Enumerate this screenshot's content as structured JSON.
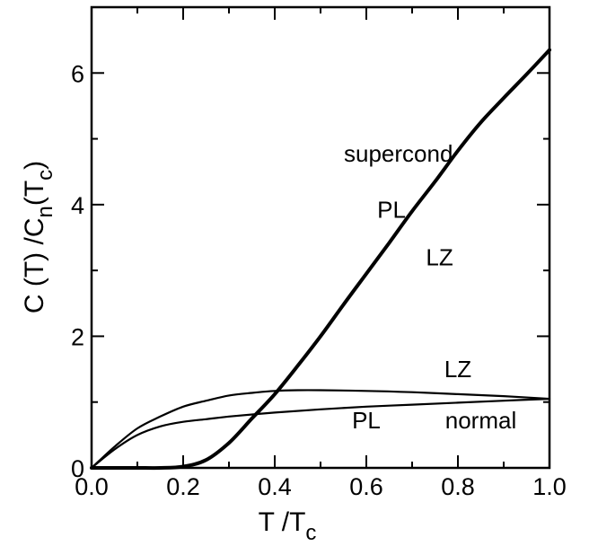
{
  "chart_data": {
    "type": "line",
    "xlabel": {
      "main": "T /T",
      "sub": "c"
    },
    "ylabel": {
      "p1": "C (T) /C",
      "sub1": "n",
      "p2": "(T",
      "sub2": "c",
      "p3": ")"
    },
    "xlim": [
      0,
      1
    ],
    "ylim": [
      0,
      7
    ],
    "x_ticks": [
      0.0,
      0.2,
      0.4,
      0.6,
      0.8,
      1.0
    ],
    "x_tick_labels": [
      "0.0",
      "0.2",
      "0.4",
      "0.6",
      "0.8",
      "1.0"
    ],
    "y_ticks": [
      0,
      2,
      4,
      6
    ],
    "y_tick_labels": [
      "0",
      "2",
      "4",
      "6"
    ],
    "grid": false,
    "legend": "none",
    "series": [
      {
        "name": "supercond",
        "x": [
          0.0,
          0.05,
          0.1,
          0.15,
          0.2,
          0.25,
          0.3,
          0.35,
          0.4,
          0.45,
          0.5,
          0.55,
          0.6,
          0.65,
          0.7,
          0.75,
          0.8,
          0.85,
          0.9,
          0.95,
          1.0
        ],
        "y": [
          0.0,
          0.0,
          0.0,
          0.0,
          0.02,
          0.12,
          0.38,
          0.75,
          1.12,
          1.55,
          2.0,
          2.48,
          2.95,
          3.42,
          3.9,
          4.35,
          4.82,
          5.25,
          5.62,
          5.98,
          6.35
        ]
      },
      {
        "name": "normal LZ",
        "x": [
          0.0,
          0.05,
          0.1,
          0.15,
          0.2,
          0.25,
          0.3,
          0.35,
          0.4,
          0.45,
          0.5,
          0.6,
          0.7,
          0.8,
          0.9,
          1.0
        ],
        "y": [
          0.0,
          0.32,
          0.6,
          0.78,
          0.93,
          1.02,
          1.1,
          1.14,
          1.17,
          1.18,
          1.18,
          1.17,
          1.15,
          1.12,
          1.09,
          1.05
        ]
      },
      {
        "name": "normal PL",
        "x": [
          0.0,
          0.05,
          0.1,
          0.15,
          0.2,
          0.25,
          0.3,
          0.4,
          0.5,
          0.6,
          0.7,
          0.8,
          0.9,
          1.0
        ],
        "y": [
          0.0,
          0.28,
          0.5,
          0.63,
          0.7,
          0.74,
          0.78,
          0.84,
          0.89,
          0.93,
          0.96,
          0.99,
          1.02,
          1.05
        ]
      }
    ],
    "annotations": [
      {
        "text": "supercond",
        "x": 0.67,
        "y": 4.65
      },
      {
        "text": "PL",
        "x": 0.655,
        "y": 3.8
      },
      {
        "text": "LZ",
        "x": 0.76,
        "y": 3.08
      },
      {
        "text": "LZ",
        "x": 0.8,
        "y": 1.38
      },
      {
        "text": "PL",
        "x": 0.6,
        "y": 0.6
      },
      {
        "text": "normal",
        "x": 0.85,
        "y": 0.6
      }
    ]
  }
}
